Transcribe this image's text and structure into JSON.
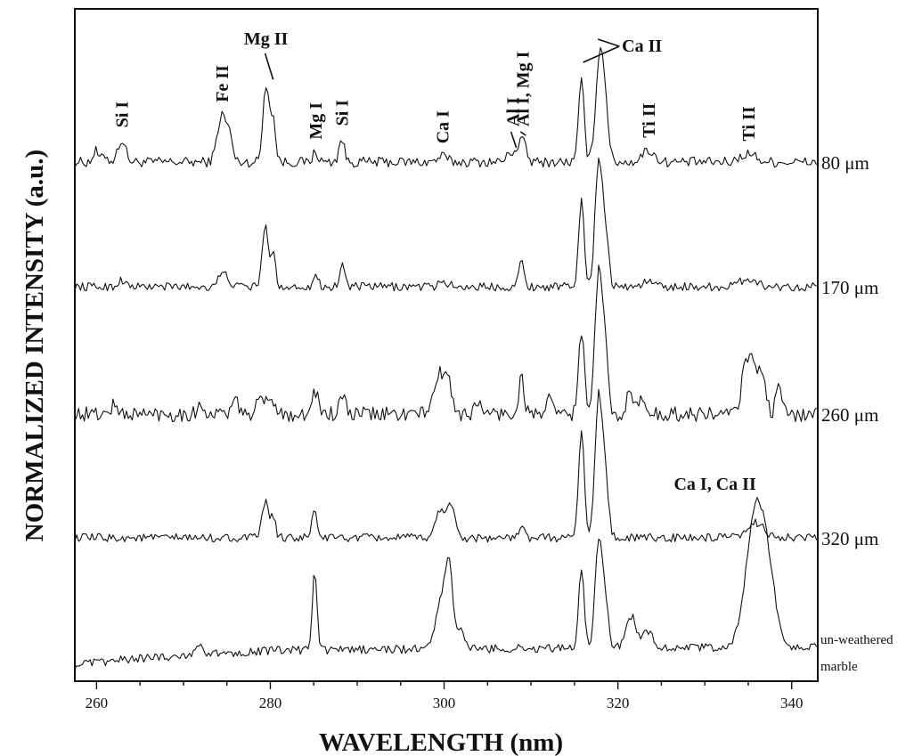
{
  "chart_data": {
    "type": "line",
    "title": "",
    "xlabel": "WAVELENGTH (nm)",
    "ylabel": "NORMALIZED INTENSITY (a.u.)",
    "xlim": [
      257.5,
      343
    ],
    "xticks": [
      260,
      280,
      300,
      320,
      340
    ],
    "xtick_labels": [
      "260",
      "280",
      "300",
      "320",
      "340"
    ],
    "grid": false,
    "y_tick_labels_shown": false,
    "stacked_offset": true,
    "series": [
      {
        "name": "80 μm",
        "offset": 4,
        "noise": 0.06,
        "baseline": [
          [
            257.5,
            0.0
          ],
          [
            343,
            0.0
          ]
        ],
        "peaks": [
          [
            259.9,
            0.13,
            0.3
          ],
          [
            261.0,
            0.08,
            0.3
          ],
          [
            262.9,
            0.26,
            0.45
          ],
          [
            274.4,
            0.55,
            0.5
          ],
          [
            275.3,
            0.28,
            0.35
          ],
          [
            279.5,
            0.92,
            0.35
          ],
          [
            280.3,
            0.5,
            0.3
          ],
          [
            285.2,
            0.12,
            0.3
          ],
          [
            288.2,
            0.28,
            0.3
          ],
          [
            299.8,
            0.07,
            0.5
          ],
          [
            307.9,
            0.12,
            0.6
          ],
          [
            309.0,
            0.25,
            0.4
          ],
          [
            315.8,
            0.95,
            0.32
          ],
          [
            317.9,
            1.27,
            0.45
          ],
          [
            318.6,
            0.5,
            0.35
          ],
          [
            323.5,
            0.14,
            0.7
          ],
          [
            335.0,
            0.1,
            0.9
          ]
        ]
      },
      {
        "name": "170 μm",
        "offset": 3,
        "noise": 0.05,
        "baseline": [
          [
            257.5,
            0.0
          ],
          [
            343,
            0.0
          ]
        ],
        "peaks": [
          [
            262.9,
            0.08,
            0.4
          ],
          [
            274.6,
            0.15,
            0.6
          ],
          [
            279.4,
            0.7,
            0.35
          ],
          [
            280.3,
            0.38,
            0.3
          ],
          [
            285.2,
            0.13,
            0.3
          ],
          [
            288.3,
            0.26,
            0.3
          ],
          [
            300.0,
            0.06,
            0.5
          ],
          [
            308.9,
            0.3,
            0.3
          ],
          [
            315.8,
            1.0,
            0.32
          ],
          [
            317.8,
            1.5,
            0.42
          ],
          [
            318.6,
            0.55,
            0.35
          ],
          [
            323.5,
            0.07,
            0.6
          ],
          [
            335.0,
            0.1,
            0.9
          ]
        ]
      },
      {
        "name": "260 μm",
        "offset": 2,
        "noise": 0.09,
        "baseline": [
          [
            257.5,
            0.0
          ],
          [
            343,
            0.0
          ]
        ],
        "peaks": [
          [
            262.0,
            0.1,
            0.4
          ],
          [
            272.0,
            0.1,
            0.4
          ],
          [
            276.0,
            0.12,
            0.5
          ],
          [
            279.0,
            0.18,
            0.5
          ],
          [
            280.3,
            0.17,
            0.4
          ],
          [
            285.2,
            0.28,
            0.3
          ],
          [
            288.3,
            0.22,
            0.3
          ],
          [
            299.5,
            0.44,
            0.7
          ],
          [
            300.5,
            0.25,
            0.5
          ],
          [
            304.0,
            0.1,
            0.5
          ],
          [
            308.9,
            0.45,
            0.3
          ],
          [
            312.0,
            0.15,
            0.4
          ],
          [
            315.8,
            1.0,
            0.32
          ],
          [
            317.8,
            1.7,
            0.42
          ],
          [
            318.6,
            0.6,
            0.35
          ],
          [
            321.3,
            0.22,
            0.4
          ],
          [
            322.6,
            0.22,
            0.3
          ],
          [
            334.8,
            0.67,
            0.5
          ],
          [
            335.8,
            0.5,
            0.4
          ],
          [
            336.7,
            0.4,
            0.4
          ],
          [
            338.5,
            0.35,
            0.3
          ]
        ]
      },
      {
        "name": "320 μm",
        "offset": 1,
        "noise": 0.05,
        "baseline": [
          [
            257.5,
            0.0
          ],
          [
            343,
            0.0
          ]
        ],
        "peaks": [
          [
            279.4,
            0.43,
            0.35
          ],
          [
            280.3,
            0.25,
            0.3
          ],
          [
            285.1,
            0.35,
            0.28
          ],
          [
            299.5,
            0.3,
            0.5
          ],
          [
            300.7,
            0.4,
            0.5
          ],
          [
            309.0,
            0.12,
            0.3
          ],
          [
            315.8,
            1.3,
            0.32
          ],
          [
            317.8,
            1.68,
            0.42
          ],
          [
            318.6,
            0.6,
            0.35
          ],
          [
            336.0,
            0.18,
            0.9
          ]
        ]
      },
      {
        "name": "un-weathered marble",
        "offset": 0,
        "noise": 0.05,
        "baseline": [
          [
            257.5,
            -0.05
          ],
          [
            265.0,
            0.03
          ],
          [
            280.0,
            0.12
          ],
          [
            300.0,
            0.14
          ],
          [
            343.0,
            0.16
          ]
        ],
        "peaks": [
          [
            271.8,
            0.15,
            0.35
          ],
          [
            285.1,
            0.9,
            0.28
          ],
          [
            299.6,
            0.55,
            0.6
          ],
          [
            300.6,
            0.9,
            0.45
          ],
          [
            302.0,
            0.2,
            0.4
          ],
          [
            315.8,
            0.95,
            0.32
          ],
          [
            317.8,
            1.3,
            0.42
          ],
          [
            318.6,
            0.45,
            0.35
          ],
          [
            321.5,
            0.38,
            0.6
          ],
          [
            323.5,
            0.2,
            0.6
          ],
          [
            335.9,
            1.65,
            1.1
          ],
          [
            337.5,
            0.5,
            0.8
          ]
        ]
      }
    ],
    "annotations": [
      {
        "text": "Si I",
        "x": 262.9,
        "series": "80 μm",
        "rotated": true
      },
      {
        "text": "Fe II",
        "x": 274.4,
        "series": "80 μm",
        "rotated": true
      },
      {
        "text": "Mg II",
        "x": 279.5,
        "series": "80 μm",
        "rotated": false
      },
      {
        "text": "Mg I",
        "x": 285.2,
        "series": "80 μm",
        "rotated": true
      },
      {
        "text": "Si I",
        "x": 288.2,
        "series": "80 μm",
        "rotated": true
      },
      {
        "text": "Ca I",
        "x": 299.8,
        "series": "80 μm",
        "rotated": true
      },
      {
        "text": "Al I",
        "x": 307.9,
        "series": "80 μm",
        "rotated": true
      },
      {
        "text": "Al I, Mg I",
        "x": 309.0,
        "series": "80 μm",
        "rotated": true
      },
      {
        "text": "Ca II",
        "x": 317.9,
        "series": "80 μm",
        "rotated": false
      },
      {
        "text": "Ti II",
        "x": 323.5,
        "series": "80 μm",
        "rotated": true
      },
      {
        "text": "Ti II",
        "x": 335.0,
        "series": "80 μm",
        "rotated": true
      },
      {
        "text": "Ca I, Ca II",
        "x": 335.9,
        "series": "un-weathered marble",
        "rotated": false
      }
    ]
  }
}
